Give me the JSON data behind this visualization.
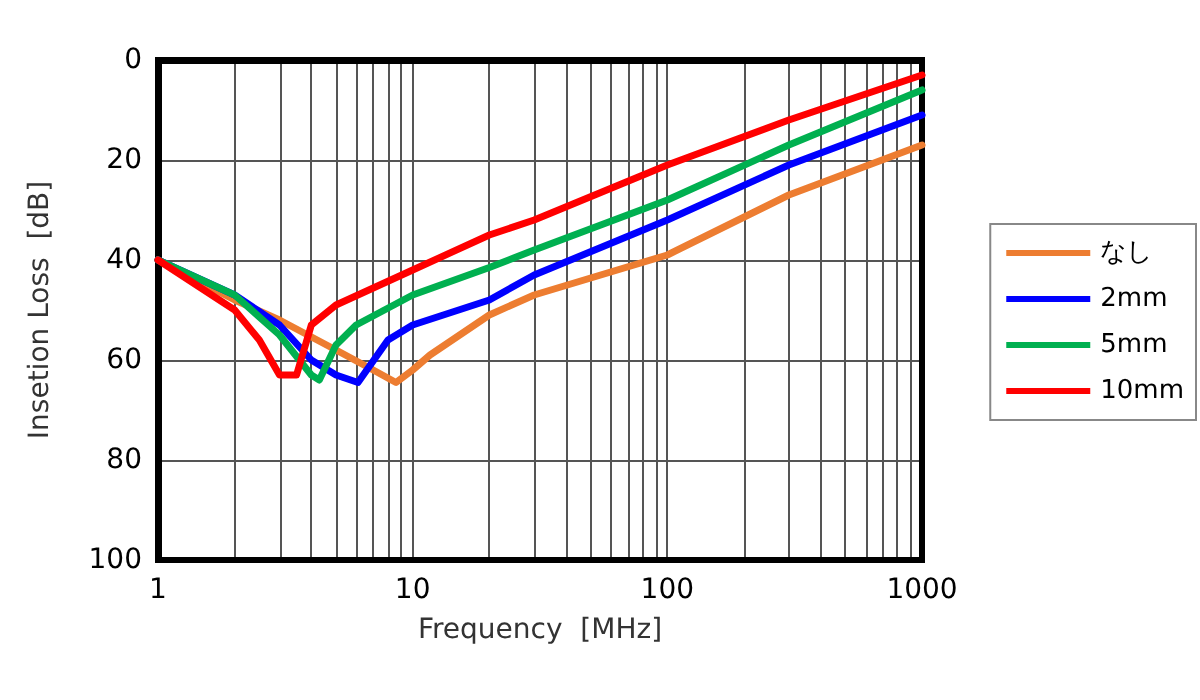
{
  "chart_data": {
    "type": "line",
    "xlabel": "Frequency  [MHz]",
    "ylabel": "Insetion Loss  [dB]",
    "log": "x",
    "xlim": [
      1,
      1000
    ],
    "xticks": [
      1,
      {
        "value": 2,
        "label": null
      },
      {
        "value": 3,
        "label": null
      },
      {
        "value": 4,
        "label": null
      },
      {
        "value": 5,
        "label": null
      },
      {
        "value": 6,
        "label": null
      },
      {
        "value": 7,
        "label": null
      },
      {
        "value": 8,
        "label": null
      },
      {
        "value": 9,
        "label": null
      },
      10,
      {
        "value": 20,
        "label": null
      },
      {
        "value": 30,
        "label": null
      },
      {
        "value": 40,
        "label": null
      },
      {
        "value": 50,
        "label": null
      },
      {
        "value": 60,
        "label": null
      },
      {
        "value": 70,
        "label": null
      },
      {
        "value": 80,
        "label": null
      },
      {
        "value": 90,
        "label": null
      },
      100,
      {
        "value": 200,
        "label": null
      },
      {
        "value": 300,
        "label": null
      },
      {
        "value": 400,
        "label": null
      },
      {
        "value": 500,
        "label": null
      },
      {
        "value": 600,
        "label": null
      },
      {
        "value": 700,
        "label": null
      },
      {
        "value": 800,
        "label": null
      },
      {
        "value": 900,
        "label": null
      },
      1000
    ],
    "ylim": [
      100,
      0
    ],
    "yticks": [
      0,
      20,
      40,
      60,
      80,
      100
    ],
    "grid": true,
    "legend": "right",
    "marker": "none",
    "line_style": "solid",
    "series": [
      {
        "name": "なし",
        "color": "#ed7d31",
        "x": [
          1,
          2,
          3,
          5,
          7,
          8.6,
          10,
          11.7,
          20,
          30,
          100,
          300,
          1000
        ],
        "values": [
          40,
          48,
          52,
          58,
          62,
          64.5,
          62,
          59,
          51,
          47,
          39,
          27,
          17
        ]
      },
      {
        "name": "2mm",
        "color": "#0000ff",
        "x": [
          1,
          2,
          3,
          4,
          5,
          6.1,
          8,
          10,
          20,
          30,
          100,
          300,
          1000
        ],
        "values": [
          40,
          47,
          53,
          60,
          63,
          64.5,
          56,
          53,
          48,
          43,
          32,
          21,
          11
        ]
      },
      {
        "name": "5mm",
        "color": "#00b050",
        "x": [
          1,
          2,
          3,
          4,
          4.3,
          5,
          6,
          10,
          20,
          30,
          100,
          300,
          1000
        ],
        "values": [
          40,
          47,
          55,
          63,
          64,
          57,
          53,
          47,
          41.5,
          38,
          28,
          17,
          6
        ]
      },
      {
        "name": "10mm",
        "color": "#ff0000",
        "x": [
          1,
          2,
          2.5,
          3,
          3.5,
          4,
          5,
          10,
          20,
          30,
          100,
          300,
          1000
        ],
        "values": [
          40,
          50,
          56,
          63,
          63,
          53,
          49,
          42,
          35,
          32,
          21,
          12,
          3
        ]
      }
    ]
  }
}
